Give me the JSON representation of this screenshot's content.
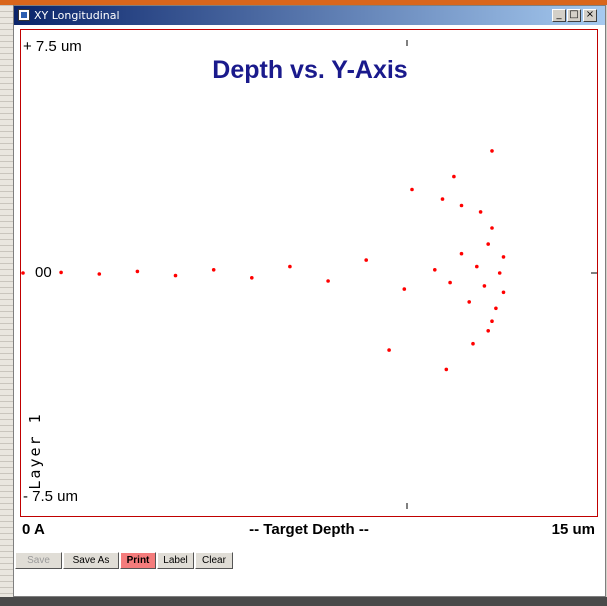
{
  "window": {
    "title": "XY Longitudinal",
    "controls": {
      "minimize": "_",
      "maximize": "□",
      "close": "×"
    }
  },
  "plot": {
    "y_top_label": "+ 7.5 um",
    "y_bottom_label": "- 7.5 um",
    "center_label": "00",
    "layer_label": "Layer 1",
    "x_left_label": "0 A",
    "x_center_label": "-- Target Depth --",
    "x_right_label": "15 um",
    "frame_color": "#c00000",
    "marker_color": "#ff0000"
  },
  "buttons": [
    {
      "label": "Save",
      "enabled": false
    },
    {
      "label": "Save As",
      "enabled": true
    },
    {
      "label": "Print",
      "enabled": true,
      "highlight": "#f47c7c"
    },
    {
      "label": "Label",
      "enabled": true
    },
    {
      "label": "Clear",
      "enabled": true
    }
  ],
  "chart_data": {
    "type": "scatter",
    "title": "Depth vs. Y-Axis",
    "xlabel": "-- Target Depth --",
    "ylabel": "",
    "xlim": [
      0,
      15
    ],
    "ylim": [
      -7.5,
      7.5
    ],
    "x_unit": "um",
    "y_unit": "um",
    "grid": false,
    "series": [
      {
        "color": "#ff0000",
        "values": [
          [
            0.0,
            0.0
          ],
          [
            1.0,
            0.02
          ],
          [
            2.0,
            -0.03
          ],
          [
            3.0,
            0.05
          ],
          [
            4.0,
            -0.08
          ],
          [
            5.0,
            0.1
          ],
          [
            6.0,
            -0.15
          ],
          [
            7.0,
            0.2
          ],
          [
            8.0,
            -0.25
          ],
          [
            9.0,
            0.4
          ],
          [
            10.0,
            -0.5
          ],
          [
            10.8,
            0.1
          ],
          [
            11.2,
            -0.3
          ],
          [
            11.5,
            0.6
          ],
          [
            11.7,
            -0.9
          ],
          [
            11.9,
            0.2
          ],
          [
            12.1,
            -0.4
          ],
          [
            12.2,
            0.9
          ],
          [
            12.4,
            -1.1
          ],
          [
            12.5,
            0.0
          ],
          [
            12.3,
            1.4
          ],
          [
            12.2,
            -1.8
          ],
          [
            12.0,
            1.9
          ],
          [
            11.8,
            -2.2
          ],
          [
            12.3,
            -1.5
          ],
          [
            12.6,
            0.5
          ],
          [
            12.6,
            -0.6
          ],
          [
            11.5,
            2.1
          ],
          [
            11.0,
            2.3
          ],
          [
            10.2,
            2.6
          ],
          [
            9.6,
            -2.4
          ],
          [
            11.3,
            3.0
          ],
          [
            12.3,
            3.8
          ],
          [
            11.1,
            -3.0
          ]
        ]
      }
    ]
  }
}
